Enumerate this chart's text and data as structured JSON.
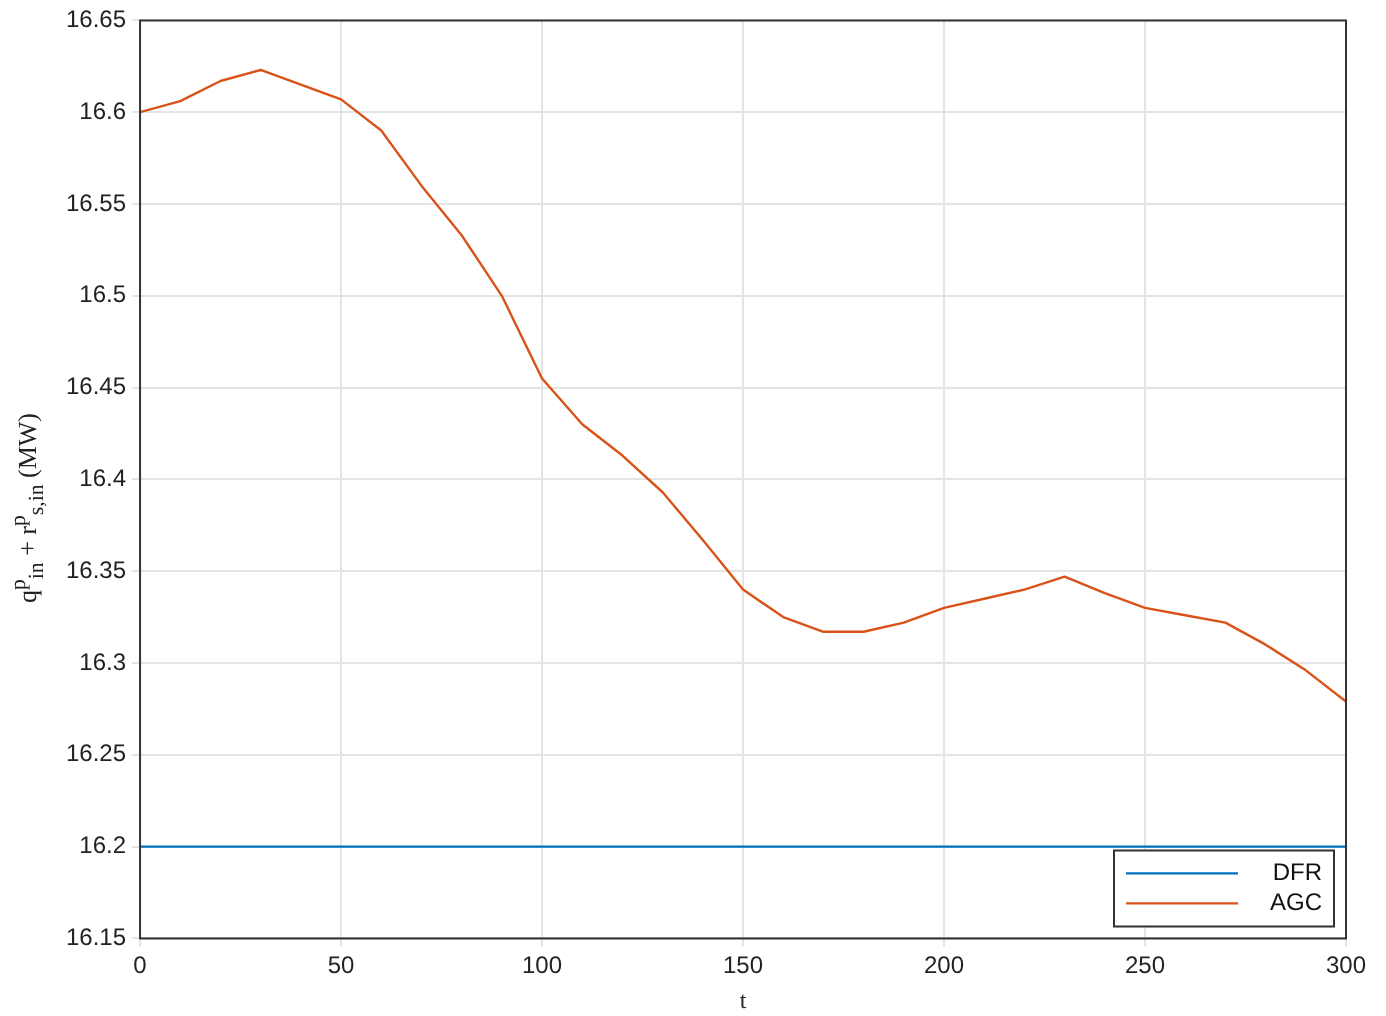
{
  "chart_data": {
    "type": "line",
    "xlabel": "t",
    "ylabel": "q$^{p}$$_{in}$ + r$^{p}$$_{s,in}$ (MW)",
    "xlim": [
      0,
      300
    ],
    "xticks": [
      0,
      50,
      100,
      150,
      200,
      250,
      300
    ],
    "ylim": [
      16.15,
      16.65
    ],
    "yticks": [
      16.15,
      16.2,
      16.25,
      16.3,
      16.35,
      16.4,
      16.45,
      16.5,
      16.55,
      16.6,
      16.65
    ],
    "grid": true,
    "legend": "bottom right",
    "series": [
      {
        "name": "DFR",
        "color": "#0072bd",
        "x": [
          0,
          300
        ],
        "values": [
          16.2,
          16.2
        ]
      },
      {
        "name": "AGC",
        "color": "#d95319",
        "x": [
          0,
          10,
          20,
          30,
          40,
          50,
          60,
          70,
          80,
          90,
          100,
          110,
          120,
          130,
          140,
          150,
          160,
          170,
          180,
          190,
          200,
          210,
          220,
          230,
          240,
          250,
          260,
          270,
          280,
          290,
          300
        ],
        "values": [
          16.6,
          16.606,
          16.617,
          16.623,
          16.615,
          16.607,
          16.59,
          16.56,
          16.533,
          16.5,
          16.455,
          16.43,
          16.413,
          16.393,
          16.367,
          16.34,
          16.325,
          16.317,
          16.317,
          16.322,
          16.33,
          16.335,
          16.34,
          16.347,
          16.338,
          16.33,
          16.326,
          16.322,
          16.31,
          16.296,
          16.279
        ]
      }
    ]
  }
}
